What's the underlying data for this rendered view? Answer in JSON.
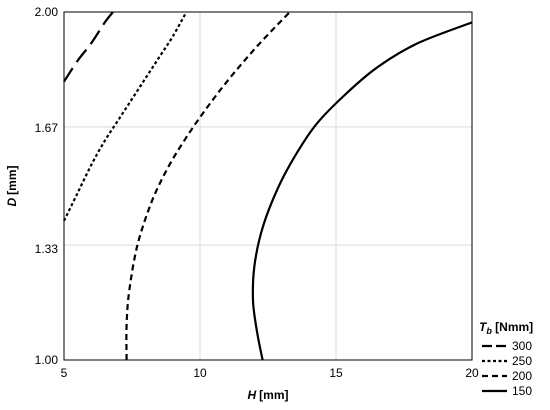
{
  "chart_data": {
    "type": "line",
    "xlabel": {
      "var": "H",
      "unit": "[mm]"
    },
    "ylabel": {
      "var": "D",
      "unit": "[mm]"
    },
    "xlim": [
      5,
      20
    ],
    "ylim": [
      1.0,
      2.0
    ],
    "xticks": [
      "5",
      "10",
      "15",
      "20"
    ],
    "yticks": [
      "1.00",
      "1.33",
      "1.67",
      "2.00"
    ],
    "grid": true,
    "legend": {
      "position": "bottom-right",
      "title_var": "T",
      "title_sub": "b",
      "title_unit": " [Nmm]"
    },
    "series": [
      {
        "name": "300",
        "style": "long-dash",
        "points": [
          [
            5.0,
            1.8
          ],
          [
            5.5,
            1.86
          ],
          [
            6.0,
            1.91
          ],
          [
            6.5,
            1.97
          ],
          [
            6.8,
            2.0
          ]
        ]
      },
      {
        "name": "250",
        "style": "dot",
        "points": [
          [
            5.0,
            1.4
          ],
          [
            5.5,
            1.48
          ],
          [
            6.0,
            1.56
          ],
          [
            6.5,
            1.63
          ],
          [
            7.0,
            1.69
          ],
          [
            7.5,
            1.75
          ],
          [
            8.0,
            1.81
          ],
          [
            8.5,
            1.87
          ],
          [
            9.0,
            1.93
          ],
          [
            9.5,
            2.0
          ]
        ]
      },
      {
        "name": "200",
        "style": "short-dash",
        "points": [
          [
            7.3,
            1.0
          ],
          [
            7.3,
            1.1
          ],
          [
            7.4,
            1.2
          ],
          [
            7.7,
            1.33
          ],
          [
            8.2,
            1.45
          ],
          [
            8.8,
            1.55
          ],
          [
            9.5,
            1.64
          ],
          [
            10.3,
            1.73
          ],
          [
            11.2,
            1.82
          ],
          [
            12.2,
            1.91
          ],
          [
            13.3,
            2.0
          ]
        ]
      },
      {
        "name": "150",
        "style": "solid",
        "points": [
          [
            12.3,
            1.0
          ],
          [
            12.1,
            1.08
          ],
          [
            11.95,
            1.17
          ],
          [
            12.0,
            1.27
          ],
          [
            12.3,
            1.38
          ],
          [
            12.9,
            1.5
          ],
          [
            13.6,
            1.6
          ],
          [
            14.3,
            1.68
          ],
          [
            15.3,
            1.76
          ],
          [
            16.5,
            1.84
          ],
          [
            18.0,
            1.91
          ],
          [
            20.0,
            1.97
          ]
        ]
      }
    ]
  }
}
